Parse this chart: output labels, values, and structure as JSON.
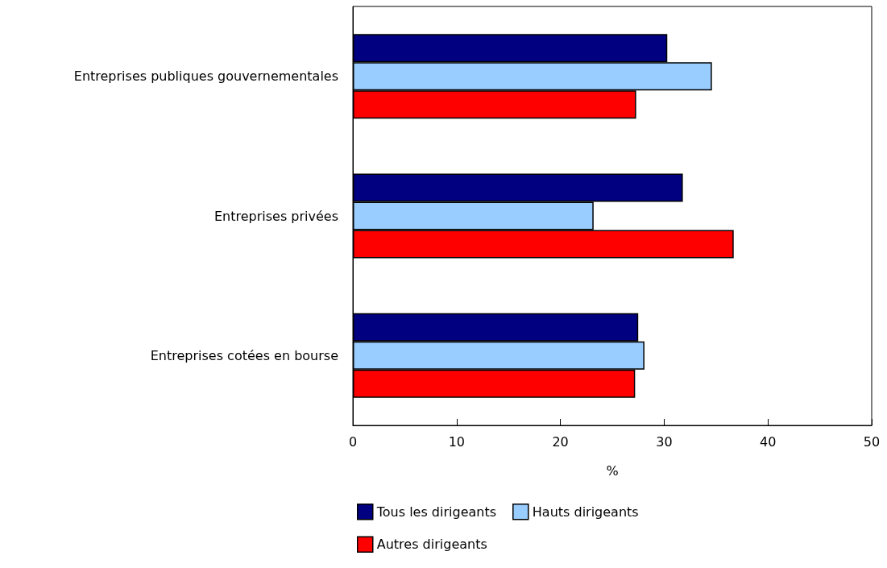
{
  "chart_data": {
    "type": "bar",
    "orientation": "horizontal",
    "xlabel": "%",
    "categories": [
      "Entreprises publiques gouvernementales",
      "Entreprises privées",
      "Entreprises cotées en bourse"
    ],
    "series": [
      {
        "name": "Tous les dirigeants",
        "color": "#000080",
        "values": [
          30.3,
          31.8,
          27.5
        ]
      },
      {
        "name": "Hauts dirigeants",
        "color": "#99ccff",
        "values": [
          34.6,
          23.2,
          28.1
        ]
      },
      {
        "name": "Autres dirigeants",
        "color": "#ff0000",
        "values": [
          27.3,
          36.7,
          27.2
        ]
      }
    ],
    "xlim": [
      0,
      50
    ],
    "xticks": [
      0,
      10,
      20,
      30,
      40,
      50
    ],
    "grid": false,
    "legend": "bottom"
  }
}
